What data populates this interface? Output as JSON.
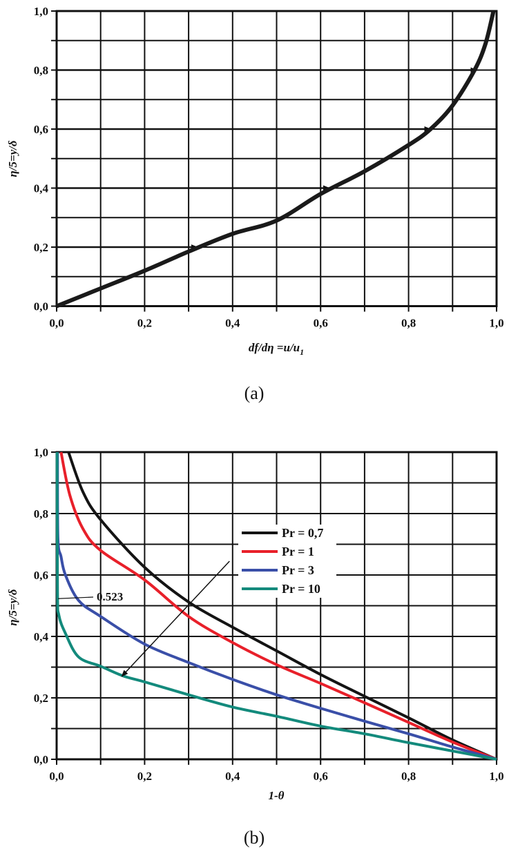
{
  "chart_data": [
    {
      "type": "line",
      "caption": "(a)",
      "xlabel": "df/dη =u/u",
      "xlabel_sub": "1",
      "ylabel": "η/5=y/δ",
      "xlim": [
        0,
        1.0
      ],
      "ylim": [
        0,
        1.0
      ],
      "x_ticks": [
        "0,0",
        "0,2",
        "0,4",
        "0,6",
        "0,8",
        "1,0"
      ],
      "y_ticks": [
        "0,0",
        "0,2",
        "0,4",
        "0,6",
        "0,8",
        "1,0"
      ],
      "grid": true,
      "series": [
        {
          "color": "#1a1a1a",
          "points": [
            [
              0,
              0
            ],
            [
              0.1,
              0.06
            ],
            [
              0.2,
              0.12
            ],
            [
              0.3,
              0.185
            ],
            [
              0.4,
              0.245
            ],
            [
              0.5,
              0.29
            ],
            [
              0.6,
              0.38
            ],
            [
              0.7,
              0.457
            ],
            [
              0.8,
              0.546
            ],
            [
              0.85,
              0.6
            ],
            [
              0.9,
              0.68
            ],
            [
              0.95,
              0.8
            ],
            [
              0.975,
              0.89
            ],
            [
              0.993,
              1.0
            ]
          ]
        }
      ],
      "arrows": [
        {
          "y": 0.2,
          "x_from": 0,
          "x_to": 0.32
        },
        {
          "y": 0.4,
          "x_from": 0,
          "x_to": 0.62
        },
        {
          "y": 0.6,
          "x_from": 0,
          "x_to": 0.85
        },
        {
          "y": 0.8,
          "x_from": 0,
          "x_to": 0.955
        }
      ]
    },
    {
      "type": "line",
      "caption": "(b)",
      "xlabel": "1-θ",
      "ylabel": "η/5=y/δ",
      "xlim": [
        0,
        1.0
      ],
      "ylim": [
        0,
        1.0
      ],
      "x_ticks": [
        "0,0",
        "0,2",
        "0,4",
        "0,6",
        "0,8",
        "1,0"
      ],
      "y_ticks": [
        "0,0",
        "0,2",
        "0,4",
        "0,6",
        "0,8",
        "1,0"
      ],
      "grid": true,
      "legend_position": "center-right",
      "series": [
        {
          "name": "Pr = 0,7",
          "color": "#141414",
          "points": [
            [
              0.027,
              1.0
            ],
            [
              0.06,
              0.87
            ],
            [
              0.1,
              0.78
            ],
            [
              0.2,
              0.625
            ],
            [
              0.3,
              0.512
            ],
            [
              0.4,
              0.43
            ],
            [
              0.5,
              0.353
            ],
            [
              0.6,
              0.276
            ],
            [
              0.7,
              0.205
            ],
            [
              0.8,
              0.135
            ],
            [
              0.9,
              0.063
            ],
            [
              1.0,
              0
            ]
          ]
        },
        {
          "name": "Pr = 1",
          "color": "#e8202a",
          "points": [
            [
              0.01,
              1.0
            ],
            [
              0.03,
              0.86
            ],
            [
              0.06,
              0.75
            ],
            [
              0.1,
              0.68
            ],
            [
              0.2,
              0.584
            ],
            [
              0.3,
              0.465
            ],
            [
              0.4,
              0.38
            ],
            [
              0.5,
              0.308
            ],
            [
              0.6,
              0.247
            ],
            [
              0.7,
              0.184
            ],
            [
              0.8,
              0.12
            ],
            [
              0.9,
              0.056
            ],
            [
              1.0,
              0
            ]
          ]
        },
        {
          "name": "Pr = 3",
          "color": "#3a4fa8",
          "points": [
            [
              0.002,
              1.0
            ],
            [
              0.003,
              0.72
            ],
            [
              0.01,
              0.66
            ],
            [
              0.02,
              0.6
            ],
            [
              0.05,
              0.517
            ],
            [
              0.1,
              0.465
            ],
            [
              0.2,
              0.375
            ],
            [
              0.3,
              0.315
            ],
            [
              0.4,
              0.26
            ],
            [
              0.5,
              0.21
            ],
            [
              0.6,
              0.166
            ],
            [
              0.7,
              0.124
            ],
            [
              0.8,
              0.083
            ],
            [
              0.9,
              0.04
            ],
            [
              1.0,
              0
            ]
          ]
        },
        {
          "name": "Pr = 10",
          "color": "#138a7c",
          "points": [
            [
              0.001,
              1.0
            ],
            [
              0.002,
              0.55
            ],
            [
              0.005,
              0.47
            ],
            [
              0.02,
              0.41
            ],
            [
              0.05,
              0.333
            ],
            [
              0.1,
              0.303
            ],
            [
              0.15,
              0.272
            ],
            [
              0.2,
              0.252
            ],
            [
              0.3,
              0.21
            ],
            [
              0.4,
              0.17
            ],
            [
              0.5,
              0.14
            ],
            [
              0.6,
              0.108
            ],
            [
              0.7,
              0.083
            ],
            [
              0.8,
              0.054
            ],
            [
              0.9,
              0.027
            ],
            [
              1.0,
              0
            ]
          ]
        }
      ],
      "annotation": {
        "text": "0.523",
        "x": 0.0,
        "y": 0.523
      },
      "arrow": {
        "from": [
          0.393,
          0.645
        ],
        "to": [
          0.148,
          0.27
        ]
      }
    }
  ]
}
